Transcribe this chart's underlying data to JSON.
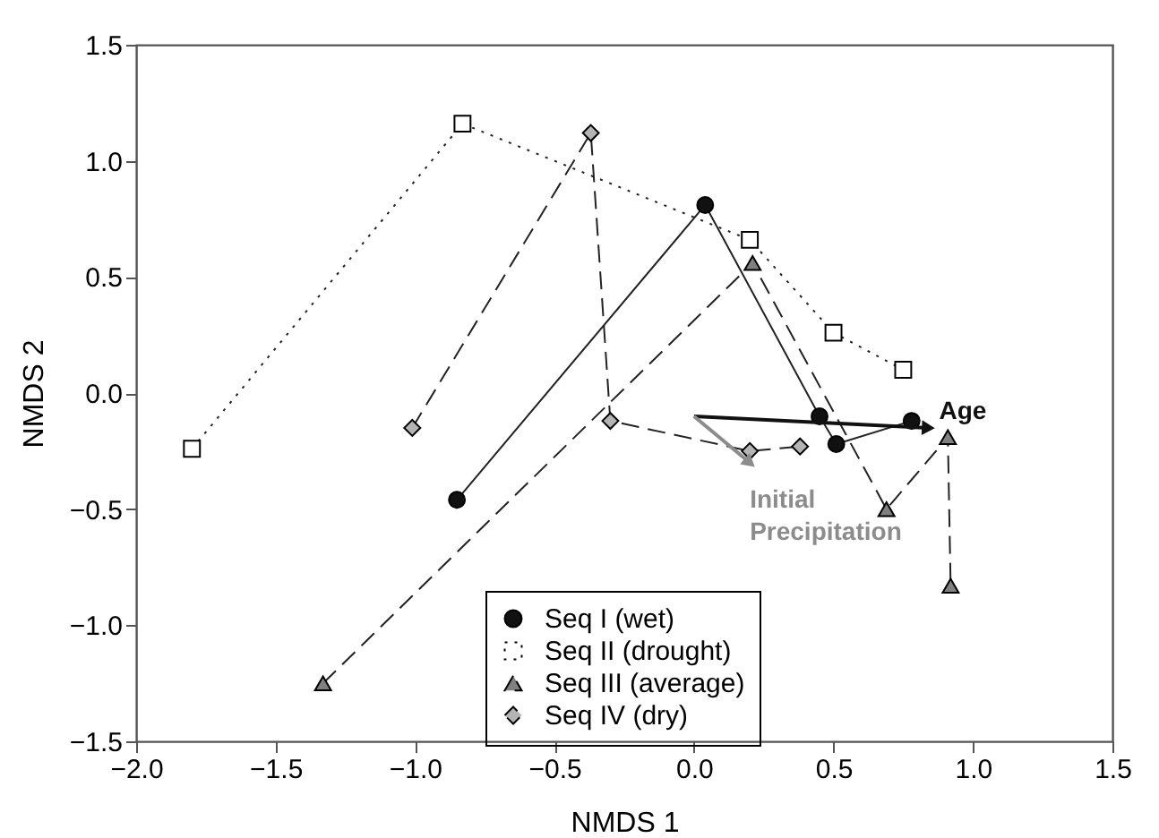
{
  "chart_data": {
    "type": "line",
    "xlabel": "NMDS 1",
    "ylabel": "NMDS 2",
    "xlim": [
      -2.0,
      1.5
    ],
    "xticks": [
      {
        "value": -2.0,
        "label": "−2.0"
      },
      {
        "value": -1.5,
        "label": "−1.5"
      },
      {
        "value": -1.0,
        "label": "−1.0"
      },
      {
        "value": -0.5,
        "label": "−0.5"
      },
      {
        "value": 0,
        "label": "0.0"
      },
      {
        "value": 0.5,
        "label": "0.5"
      },
      {
        "value": 1.0,
        "label": "1.0"
      },
      {
        "value": 1.5,
        "label": "1.5"
      }
    ],
    "ylim": [
      -1.5,
      1.5
    ],
    "yticks": [
      {
        "value": -1.5,
        "label": "−1.5"
      },
      {
        "value": -1.0,
        "label": "−1.0"
      },
      {
        "value": -0.5,
        "label": "−0.5"
      },
      {
        "value": 0,
        "label": "0.0"
      },
      {
        "value": 0.5,
        "label": "0.5"
      },
      {
        "value": 1.0,
        "label": "1.0"
      },
      {
        "value": 1.5,
        "label": "1.5"
      }
    ],
    "grid": false,
    "legend": "bottom",
    "series": [
      {
        "name": "Seq I (wet)",
        "color": "#111111",
        "marker": "circle",
        "line_style": "solid",
        "x": [
          -0.85,
          0.04,
          0.45,
          0.51,
          0.78
        ],
        "values": [
          -0.46,
          0.81,
          -0.1,
          -0.22,
          -0.12
        ]
      },
      {
        "name": "Seq II (drought)",
        "color": "#ffffff",
        "marker": "square",
        "line_style": "dotted",
        "x": [
          -1.8,
          -0.83,
          0.2,
          0.5,
          0.75
        ],
        "values": [
          -0.24,
          1.16,
          0.66,
          0.26,
          0.1
        ]
      },
      {
        "name": "Seq III (average)",
        "color": "#808080",
        "marker": "triangle",
        "line_style": "dashed",
        "x": [
          -1.33,
          0.21,
          0.69,
          0.91,
          0.92
        ],
        "values": [
          -1.25,
          0.56,
          -0.5,
          -0.19,
          -0.83
        ]
      },
      {
        "name": "Seq IV (dry)",
        "color": "#b4b4b4",
        "marker": "diamond",
        "line_style": "dashed",
        "x": [
          -1.01,
          -0.37,
          -0.3,
          0.2,
          0.38
        ],
        "values": [
          -0.15,
          1.12,
          -0.12,
          -0.25,
          -0.23
        ]
      },
      {
        "color": "#111111",
        "line_style": "solid",
        "x": [
          0.0,
          0.84
        ],
        "values": [
          -0.1,
          -0.15
        ]
      },
      {
        "color": "#8c8c8c",
        "line_style": "solid",
        "x": [
          0.0,
          0.2
        ],
        "values": [
          -0.1,
          -0.3
        ]
      }
    ],
    "annotations": [
      {
        "text": "Age",
        "x": 0.84,
        "y": -0.15
      },
      {
        "text": "Initial Precipitation",
        "x": 0.2,
        "y": -0.3
      }
    ]
  }
}
